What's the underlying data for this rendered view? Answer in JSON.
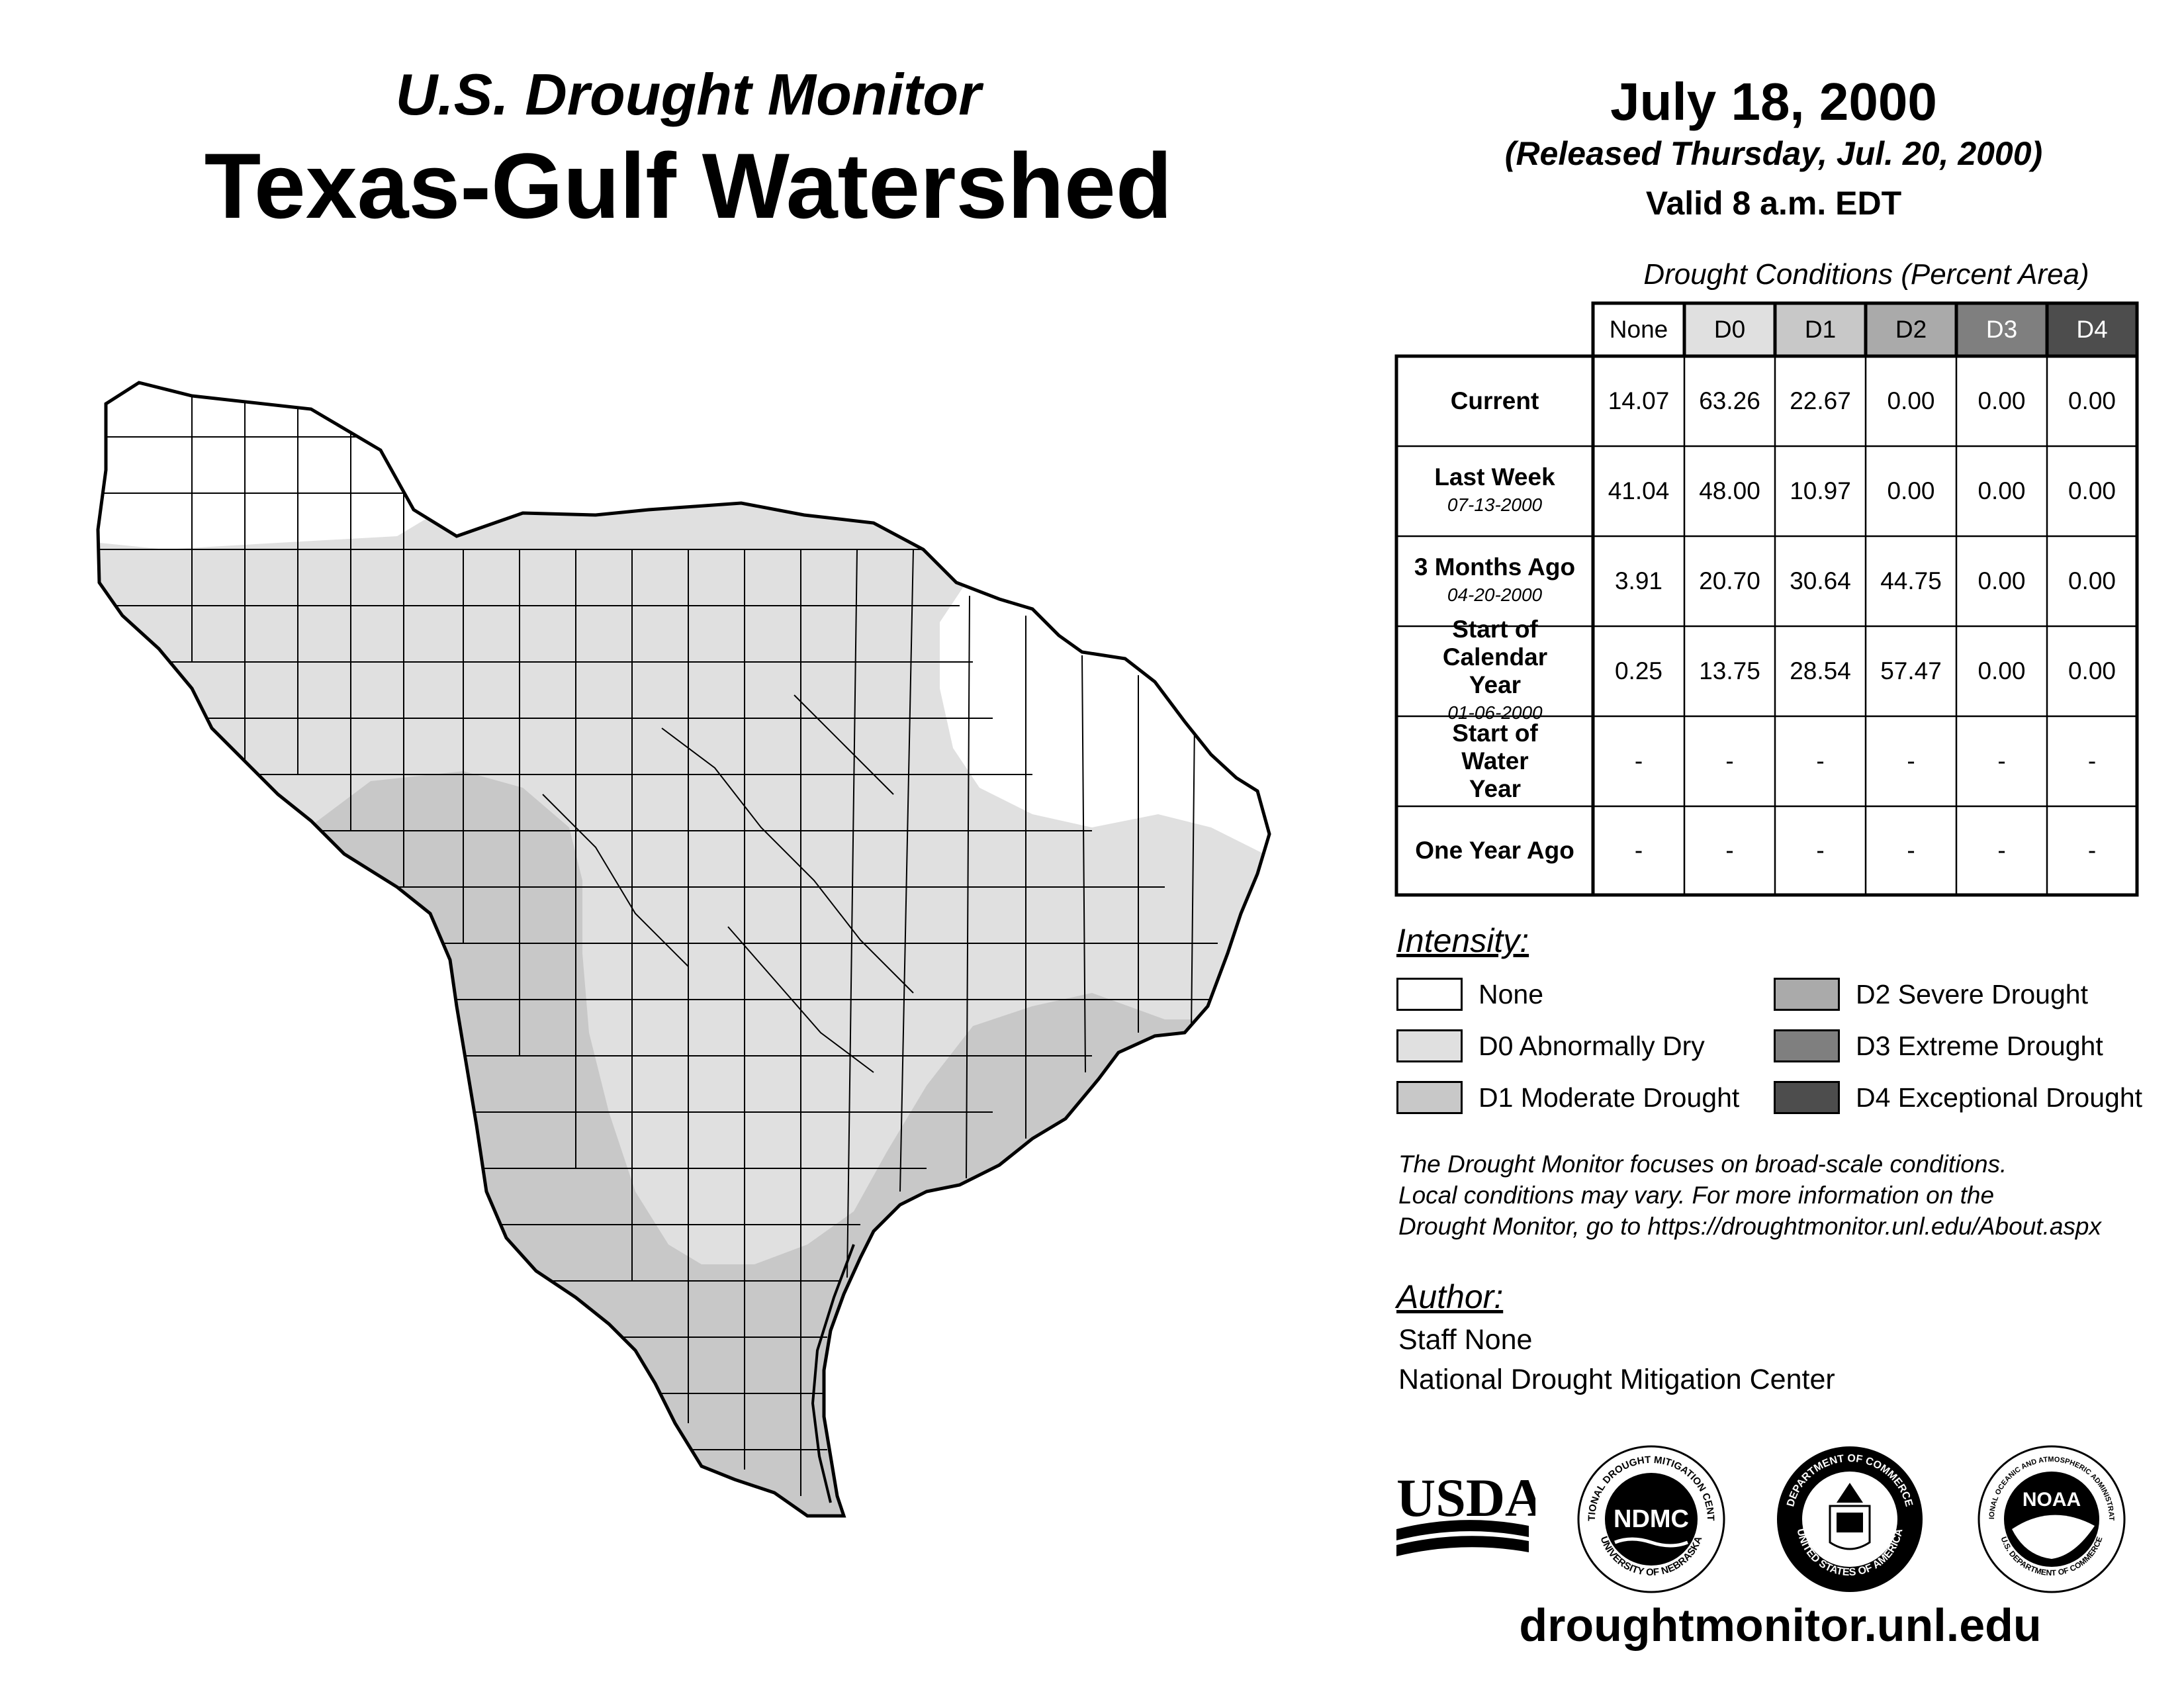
{
  "header": {
    "subtitle": "U.S. Drought Monitor",
    "title": "Texas-Gulf Watershed",
    "date": "July 18, 2000",
    "released": "(Released Thursday, Jul. 20, 2000)",
    "valid": "Valid 8 a.m. EDT"
  },
  "table": {
    "caption": "Drought Conditions (Percent Area)",
    "columns": [
      "None",
      "D0",
      "D1",
      "D2",
      "D3",
      "D4"
    ],
    "rows": [
      {
        "label": "Current",
        "date": "",
        "values": [
          "14.07",
          "63.26",
          "22.67",
          "0.00",
          "0.00",
          "0.00"
        ]
      },
      {
        "label": "Last Week",
        "date": "07-13-2000",
        "values": [
          "41.04",
          "48.00",
          "10.97",
          "0.00",
          "0.00",
          "0.00"
        ]
      },
      {
        "label": "3 Months Ago",
        "date": "04-20-2000",
        "values": [
          "3.91",
          "20.70",
          "30.64",
          "44.75",
          "0.00",
          "0.00"
        ]
      },
      {
        "label": "Start of Calendar Year",
        "date": "01-06-2000",
        "values": [
          "0.25",
          "13.75",
          "28.54",
          "57.47",
          "0.00",
          "0.00"
        ]
      },
      {
        "label": "Start of Water Year",
        "date": "",
        "values": [
          "-",
          "-",
          "-",
          "-",
          "-",
          "-"
        ]
      },
      {
        "label": "One Year Ago",
        "date": "",
        "values": [
          "-",
          "-",
          "-",
          "-",
          "-",
          "-"
        ]
      }
    ]
  },
  "legend": {
    "title": "Intensity:",
    "items": [
      {
        "label": "None",
        "color": "#ffffff"
      },
      {
        "label": "D0 Abnormally Dry",
        "color": "#e0e0e0"
      },
      {
        "label": "D1 Moderate Drought",
        "color": "#c8c8c8"
      },
      {
        "label": "D2 Severe Drought",
        "color": "#aaaaaa"
      },
      {
        "label": "D3 Extreme Drought",
        "color": "#7f7f7f"
      },
      {
        "label": "D4 Exceptional Drought",
        "color": "#4d4d4d"
      }
    ]
  },
  "note": {
    "line1": "The Drought Monitor focuses on broad-scale conditions.",
    "line2": "Local conditions may vary. For more information on the",
    "line3": "Drought Monitor, go to https://droughtmonitor.unl.edu/About.aspx"
  },
  "author": {
    "title": "Author:",
    "name": "Staff None",
    "org": "National Drought Mitigation Center"
  },
  "logos": {
    "usda": "USDA",
    "ndmc": "NDMC",
    "ndmc_ring_top": "NATIONAL DROUGHT MITIGATION CENTER",
    "ndmc_ring_bottom": "UNIVERSITY OF NEBRASKA",
    "doc_ring_top": "DEPARTMENT OF COMMERCE",
    "doc_ring_bottom": "UNITED STATES OF AMERICA",
    "noaa": "NOAA",
    "noaa_ring_top": "NATIONAL OCEANIC AND ATMOSPHERIC ADMINISTRATION",
    "noaa_ring_bottom": "U.S. DEPARTMENT OF COMMERCE"
  },
  "website": "droughtmonitor.unl.edu"
}
